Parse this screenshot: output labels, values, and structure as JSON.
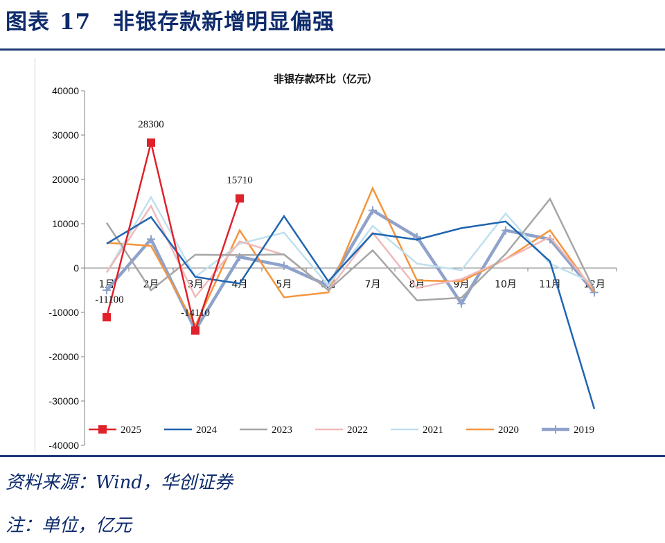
{
  "figure": {
    "label": "图表",
    "number": "17",
    "title": "非银存款新增明显偏强"
  },
  "source_text": "资料来源：Wind，华创证券",
  "note_text": "注：单位，亿元",
  "colors": {
    "2025": "#e0212b",
    "2024": "#1f64b0",
    "2023": "#a6a6a6",
    "2022": "#efb9b9",
    "2021": "#bfe0ee",
    "2020": "#f5953c",
    "2019": "#8ea2cb",
    "rule": "#1f3b75",
    "title": "#0d2a6b"
  },
  "chart_data": {
    "type": "line",
    "title": "非银存款环比（亿元）",
    "categories": [
      "1月",
      "2月",
      "3月",
      "4月",
      "5月",
      "6月",
      "7月",
      "8月",
      "9月",
      "10月",
      "11月",
      "12月"
    ],
    "ylim": [
      -40000,
      40000
    ],
    "yticks": [
      "40000",
      "30000",
      "20000",
      "10000",
      "0",
      "-10000",
      "-20000",
      "-30000",
      "-40000"
    ],
    "legend_position": "bottom",
    "series": [
      {
        "name": "2019",
        "values": [
          -5000,
          6500,
          -14000,
          2500,
          500,
          -4000,
          13000,
          7000,
          -8000,
          8500,
          6500,
          -5500
        ]
      },
      {
        "name": "2020",
        "values": [
          5700,
          5000,
          -13000,
          8500,
          -6600,
          -5500,
          18000,
          -2800,
          -3000,
          2000,
          8500,
          -5500
        ]
      },
      {
        "name": "2021",
        "values": [
          -1000,
          16000,
          -2000,
          5500,
          8000,
          -4000,
          9500,
          1000,
          -500,
          12300,
          1000,
          -3500
        ]
      },
      {
        "name": "2022",
        "values": [
          -1000,
          14000,
          -6500,
          6000,
          3000,
          -5000,
          8000,
          -4500,
          -2500,
          2000,
          7000,
          -5000
        ]
      },
      {
        "name": "2023",
        "values": [
          10200,
          -5000,
          3000,
          2900,
          3100,
          -5000,
          4000,
          -7300,
          -6700,
          3200,
          15600,
          -5000
        ]
      },
      {
        "name": "2024",
        "values": [
          5500,
          11500,
          -2000,
          -3500,
          11700,
          -3000,
          7800,
          6400,
          9000,
          10500,
          1500,
          -31800
        ]
      },
      {
        "name": "2025",
        "values": [
          -11100,
          28300,
          -14110,
          15710,
          null,
          null,
          null,
          null,
          null,
          null,
          null,
          null
        ]
      }
    ],
    "data_labels": [
      {
        "series": "2025",
        "index": 0,
        "text": "-11100"
      },
      {
        "series": "2025",
        "index": 1,
        "text": "28300"
      },
      {
        "series": "2025",
        "index": 2,
        "text": "-14110"
      },
      {
        "series": "2025",
        "index": 3,
        "text": "15710"
      }
    ],
    "legend": [
      "2025",
      "2024",
      "2023",
      "2022",
      "2021",
      "2020",
      "2019"
    ]
  }
}
